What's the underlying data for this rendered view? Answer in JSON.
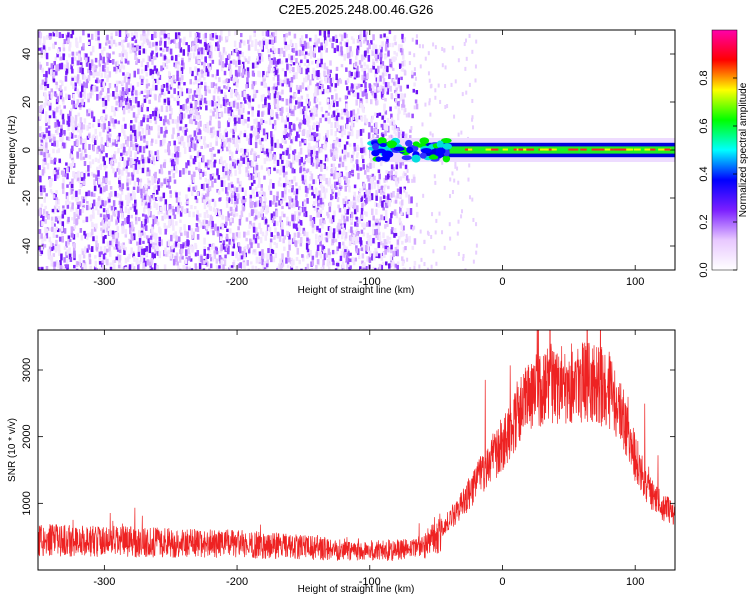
{
  "title": "C2E5.2025.248.00.46.G26",
  "chart_data": [
    {
      "type": "heatmap",
      "xlabel": "Height of straight line (km)",
      "ylabel": "Frequency (Hz)",
      "xlim": [
        -350,
        130
      ],
      "ylim": [
        -50,
        50
      ],
      "x_ticks": [
        -300,
        -200,
        -100,
        0,
        100
      ],
      "y_ticks": [
        -40,
        -20,
        0,
        20,
        40
      ],
      "colorbar": {
        "label": "Normalized spectral amplitude",
        "range": [
          0,
          1
        ],
        "ticks": [
          "0.0",
          "0.2",
          "0.4",
          "0.6",
          "0.8"
        ],
        "colors": [
          "#ffffff",
          "#e8c8ff",
          "#7b1fff",
          "#0000ff",
          "#00ffff",
          "#00ff00",
          "#ffff00",
          "#ff0000",
          "#ff00aa"
        ]
      },
      "noise_region_x": [
        -350,
        -75
      ],
      "signal_onset_x": -100,
      "signal_center_frequency": 0
    },
    {
      "type": "line",
      "xlabel": "Height of straight line (km)",
      "ylabel": "SNR (10 * v/v)",
      "xlim": [
        -350,
        130
      ],
      "ylim": [
        0,
        3600
      ],
      "x_ticks": [
        -300,
        -200,
        -100,
        0,
        100
      ],
      "y_ticks": [
        1000,
        2000,
        3000
      ],
      "series": [
        {
          "color": "#ee2222",
          "x": [
            -350,
            -325,
            -300,
            -275,
            -250,
            -225,
            -200,
            -175,
            -150,
            -125,
            -100,
            -75,
            -60,
            -50,
            -40,
            -30,
            -20,
            -10,
            0,
            10,
            20,
            30,
            40,
            50,
            60,
            70,
            80,
            90,
            100,
            110,
            120,
            130
          ],
          "y": [
            450,
            440,
            430,
            420,
            410,
            400,
            390,
            370,
            340,
            310,
            290,
            300,
            350,
            500,
            750,
            1000,
            1300,
            1600,
            1900,
            2300,
            2600,
            2750,
            2800,
            2820,
            2830,
            2800,
            2700,
            2300,
            1700,
            1200,
            950,
            850
          ]
        }
      ]
    }
  ]
}
